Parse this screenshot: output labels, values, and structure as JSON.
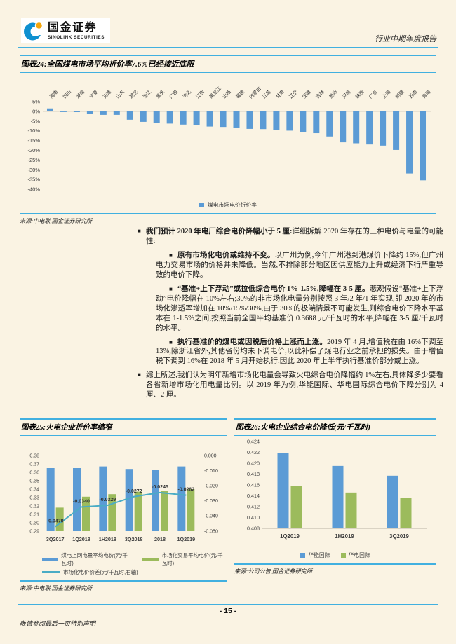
{
  "colors": {
    "page_bg": "#FAF3E3",
    "accent": "#41B0E0",
    "bar_blue": "#5B9BD5",
    "bar_green": "#9CBB5C",
    "line_teal": "#4AACC5",
    "logo_blue": "#0E90D0",
    "logo_orange": "#F5A60A"
  },
  "header": {
    "brand": "国金证券",
    "brand_sub": "SINOLINK SECURITIES",
    "report_type": "行业中期年度报告"
  },
  "figures": {
    "fig24": {
      "title": "图表24:全国煤电市场平均折价率7.6%已经接近底限",
      "legend": "煤电市场电价折价率",
      "source": "来源:中电联,国金证券研究所"
    },
    "fig25": {
      "title": "图表25:火电企业折价率缩窄",
      "legend": [
        "煤电上网电量平均电价(元/千瓦时)",
        "市场化交易平均电价(元/千瓦时)",
        "市场化电价价差(元/千瓦时,右轴)"
      ],
      "source": "来源:中电联,国金证券研究所"
    },
    "fig26": {
      "title": "图表26:火电企业综合电价降低(元/千瓦时)",
      "legend": [
        "华能国际",
        "华电国际"
      ],
      "source": "来源:公司公告,国金证券研究所"
    }
  },
  "body_text": {
    "marker": "■",
    "b1_bold": "我们预计 2020 年电厂综合电价降幅小于 5 厘:",
    "b1_rest": "详细拆解 2020 年存在的三种电价与电量的可能性:",
    "s1_bold": "原有市场化电价或维持不变。",
    "s1_rest": "以广州为例,今年广州港到港煤价下降约 15%,但广州电力交易市场的价格并未降低。当然,不排除部分地区因供应能力上升或经济下行严重导致的电价下降。",
    "s2_bold": "“基准+上下浮动”或拉低综合电价 1%-1.5%,降幅在 3-5 厘。",
    "s2_rest": "悲观假设“基准+上下浮动”电价降幅在 10%左右;30%的非市场化电量分别按照 3 年/2 年/1 年实现,即 2020 年的市场化渗透率增加在 10%/15%/30%,由于 30%的极端情景不可能发生,则综合电价下降水平基本在 1-1.5%之间,按照当前全国平均基准价 0.3688 元/千瓦时的水平,降幅在 3-5 厘/千瓦时的水平。",
    "s3_bold": "执行基准价的煤电或因税后价格上涨而上涨。",
    "s3_rest": "2019 年 4 月,增值税在由 16%下调至 13%,除浙江省外,其他省份均未下调电价,以此补偿了煤电行业之前承担的损失。由于增值税下调到 16%在 2018 年 5 月开始执行,因此 2020 年上半年执行基准价部分或上涨。",
    "b2": "综上所述,我们认为明年新增市场化电量会导致火电综合电价降幅约 1%左右,具体降多少要看各省新增市场化用电量比例。以 2019 年为例,华能国际、华电国际综合电价下降分别为 4 厘、2 厘。"
  },
  "footer": {
    "page_number": "- 15 -",
    "disclaimer": "敬请参阅最后一页特别声明"
  },
  "chart_data": [
    {
      "id": "fig24",
      "type": "bar",
      "title": "全国煤电市场平均折价率7.6%已经接近底限",
      "series_name": "煤电市场电价折价率",
      "unit": "%",
      "ylim": [
        -40,
        5
      ],
      "ytick_step": 5,
      "grid": false,
      "legend_position": "bottom",
      "categories": [
        "海南",
        "四川",
        "湖南",
        "宁夏",
        "天津",
        "山东",
        "湖北",
        "浙江",
        "重庆",
        "广西",
        "河北",
        "江西",
        "黑龙江",
        "山西",
        "福建",
        "内蒙古",
        "江苏",
        "甘肃",
        "辽宁",
        "安徽",
        "吉林",
        "贵州",
        "河南",
        "陕西",
        "广东",
        "上海",
        "新疆",
        "云南",
        "青海"
      ],
      "values": [
        1.5,
        -0.3,
        -0.4,
        -1.3,
        -1.8,
        -1.8,
        -4.3,
        -5.4,
        -5.9,
        -6.3,
        -6.8,
        -7.2,
        -7.8,
        -8.0,
        -8.3,
        -9.0,
        -9.1,
        -9.4,
        -9.9,
        -10.5,
        -11.2,
        -12.9,
        -15.9,
        -16.4,
        -17.0,
        -17.6,
        -19.8,
        -31.9,
        -35.4
      ]
    },
    {
      "id": "fig25",
      "type": "combo",
      "title": "火电企业折价率缩窄",
      "categories": [
        "3Q2017",
        "1Q2018",
        "1H2018",
        "3Q2018",
        "2018",
        "1Q2019"
      ],
      "left_ylim": [
        0.29,
        0.38
      ],
      "left_step": 0.01,
      "right_ylim": [
        -0.05,
        0.0
      ],
      "right_step": 0.01,
      "legend_position": "bottom",
      "series": [
        {
          "name": "煤电上网电量平均电价(元/千瓦时)",
          "type": "bar",
          "axis": "left",
          "values": [
            0.365,
            0.365,
            0.367,
            0.364,
            0.363,
            0.367
          ]
        },
        {
          "name": "市场化交易平均电价(元/千瓦时)",
          "type": "bar",
          "axis": "left",
          "values": [
            0.318,
            0.331,
            0.334,
            0.337,
            0.338,
            0.34
          ]
        },
        {
          "name": "市场化电价价差(元/千瓦时,右轴)",
          "type": "line",
          "axis": "right",
          "values": [
            -0.047,
            -0.034,
            -0.0329,
            -0.0272,
            -0.0245,
            -0.0262
          ],
          "labels": [
            "-0.0470",
            "-0.0340",
            "-0.0329",
            "-0.0272",
            "-0.0245",
            "-0.0262"
          ]
        }
      ]
    },
    {
      "id": "fig26",
      "type": "bar",
      "title": "火电企业综合电价降低(元/千瓦时)",
      "categories": [
        "1Q2019",
        "1H2019",
        "3Q2019"
      ],
      "ylim": [
        0.408,
        0.424
      ],
      "ytick_step": 0.002,
      "legend_position": "bottom",
      "series": [
        {
          "name": "华能国际",
          "values": [
            0.4219,
            0.4195,
            0.4177
          ]
        },
        {
          "name": "华电国际",
          "values": [
            0.4158,
            0.4146,
            0.4136
          ]
        }
      ]
    }
  ]
}
